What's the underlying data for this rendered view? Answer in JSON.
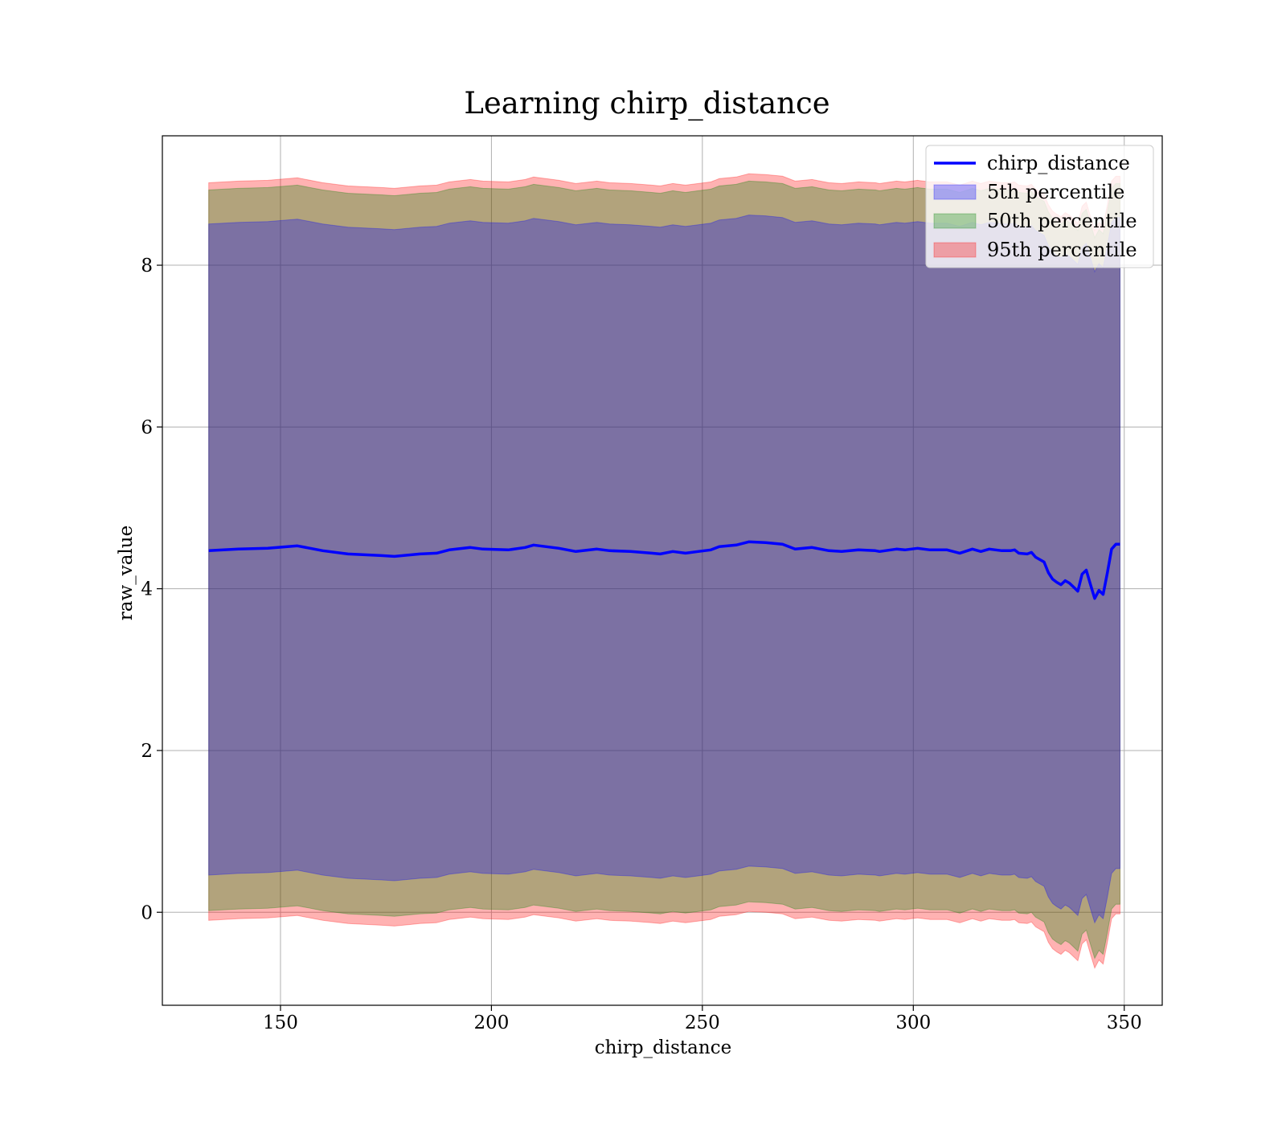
{
  "chart_data": {
    "type": "area",
    "title": "Learning chirp_distance",
    "xlabel": "chirp_distance",
    "ylabel": "raw_value",
    "xlim": [
      122,
      359
    ],
    "ylim": [
      -1.15,
      9.6
    ],
    "xticks": [
      150,
      200,
      250,
      300,
      350
    ],
    "yticks": [
      0,
      2,
      4,
      6,
      8
    ],
    "grid": true,
    "legend_position": "top-right",
    "legend": [
      "chirp_distance",
      "5th percentile",
      "50th percentile",
      "95th percentile"
    ],
    "colors": {
      "line": "#0000ff",
      "band_5th": "#0000ff",
      "band_50th": "#008000",
      "band_95th": "#ff0000"
    },
    "series_line": {
      "name": "chirp_distance",
      "x": [
        133,
        140,
        147,
        154,
        160,
        166,
        174,
        177,
        183,
        187,
        190,
        195,
        198,
        204,
        208,
        210,
        216,
        220,
        225,
        228,
        233,
        238,
        240,
        243,
        246,
        249,
        252,
        254,
        258,
        261,
        265,
        269,
        272,
        276,
        280,
        283,
        287,
        291,
        292,
        296,
        298,
        301,
        304,
        308,
        311,
        314,
        316,
        318,
        321,
        323,
        324,
        325,
        327,
        328,
        329,
        331,
        332,
        333,
        334,
        335,
        336,
        337,
        338,
        339,
        340,
        341,
        342,
        343,
        344,
        345,
        346,
        347,
        348,
        349
      ],
      "y": [
        4.47,
        4.49,
        4.5,
        4.53,
        4.47,
        4.43,
        4.41,
        4.4,
        4.43,
        4.44,
        4.48,
        4.51,
        4.49,
        4.48,
        4.51,
        4.54,
        4.5,
        4.46,
        4.49,
        4.47,
        4.46,
        4.44,
        4.43,
        4.46,
        4.44,
        4.46,
        4.48,
        4.52,
        4.54,
        4.58,
        4.57,
        4.55,
        4.49,
        4.51,
        4.47,
        4.46,
        4.48,
        4.47,
        4.46,
        4.49,
        4.48,
        4.5,
        4.48,
        4.48,
        4.44,
        4.49,
        4.46,
        4.49,
        4.47,
        4.47,
        4.48,
        4.44,
        4.43,
        4.45,
        4.39,
        4.33,
        4.2,
        4.12,
        4.08,
        4.05,
        4.1,
        4.07,
        4.02,
        3.97,
        4.18,
        4.23,
        4.05,
        3.88,
        3.98,
        3.93,
        4.2,
        4.49,
        4.55,
        4.55
      ]
    },
    "bands": [
      {
        "name": "95th percentile",
        "upper_offset": 0.09,
        "lower_offset": -0.12
      },
      {
        "name": "50th percentile",
        "upper_offset": 0.0,
        "lower_offset": 0.0
      },
      {
        "name": "5th percentile",
        "upper_offset": -0.42,
        "lower_offset": 0.44
      }
    ],
    "band_center_offsets": {
      "upper_base": 4.46,
      "lower_base": -4.45
    }
  }
}
